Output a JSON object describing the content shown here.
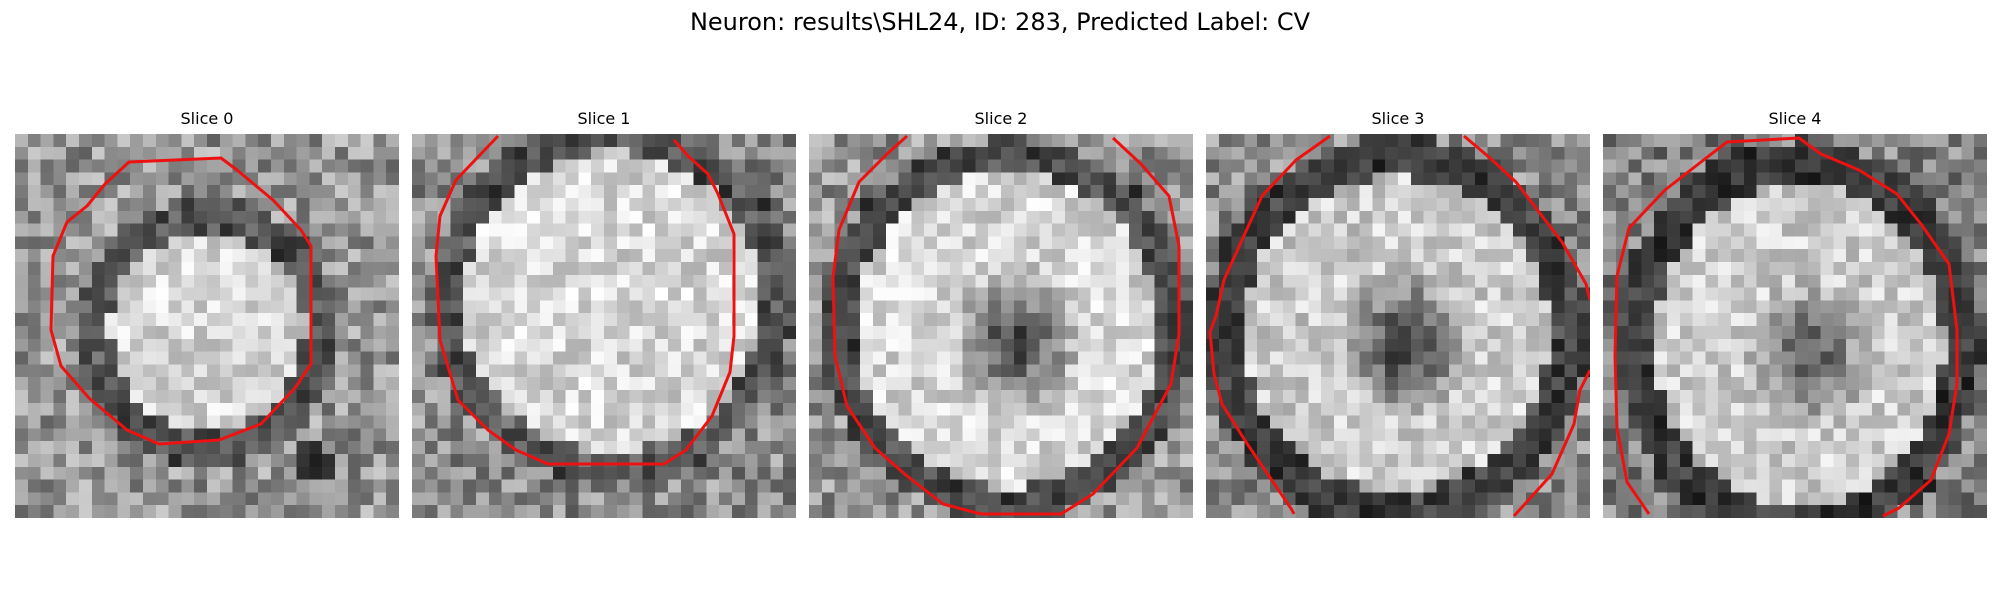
{
  "figure": {
    "title": "Neuron: results\\SHL24, ID: 283, Predicted Label: CV"
  },
  "contour_color": "#ee1111",
  "slices": [
    {
      "title": "Slice 0"
    },
    {
      "title": "Slice 1"
    },
    {
      "title": "Slice 2"
    },
    {
      "title": "Slice 3"
    },
    {
      "title": "Slice 4"
    }
  ]
}
